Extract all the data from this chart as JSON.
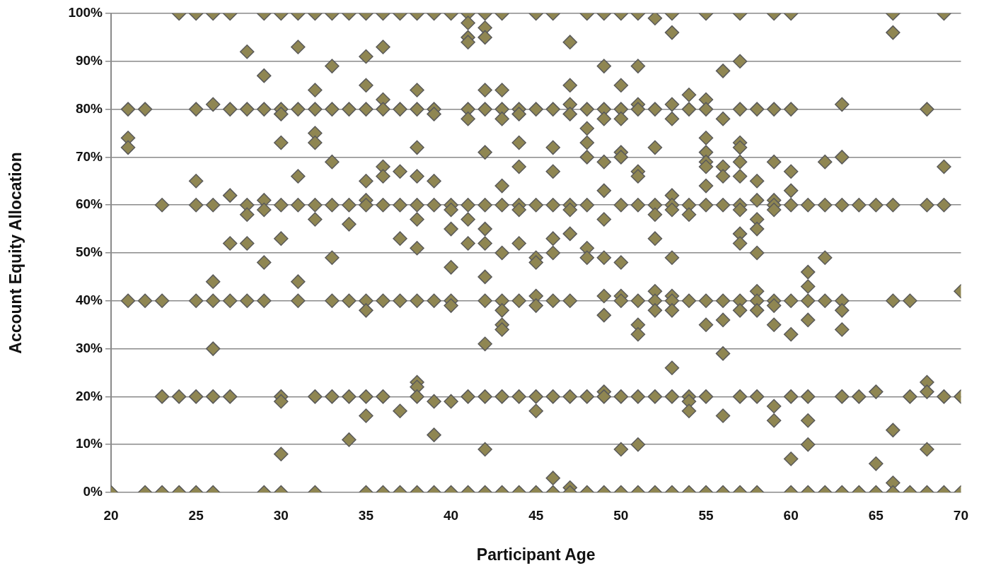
{
  "chart_data": {
    "type": "scatter",
    "xlabel": "Participant Age",
    "ylabel": "Account Equity Allocation",
    "color": "#8f8652",
    "marker": "diamond",
    "grid": "y",
    "xlim": [
      20,
      70
    ],
    "xticks": [
      20,
      25,
      30,
      35,
      40,
      45,
      50,
      55,
      60,
      65,
      70
    ],
    "ylim": [
      0,
      100
    ],
    "yticks": [
      {
        "value": 0,
        "label": "0%"
      },
      {
        "value": 10,
        "label": "10%"
      },
      {
        "value": 20,
        "label": "20%"
      },
      {
        "value": 30,
        "label": "30%"
      },
      {
        "value": 40,
        "label": "40%"
      },
      {
        "value": 50,
        "label": "50%"
      },
      {
        "value": 60,
        "label": "60%"
      },
      {
        "value": 70,
        "label": "70%"
      },
      {
        "value": 80,
        "label": "80%"
      },
      {
        "value": 90,
        "label": "90%"
      },
      {
        "value": 100,
        "label": "100%"
      }
    ],
    "x": [
      20,
      21,
      21,
      21,
      21,
      22,
      22,
      22,
      23,
      23,
      23,
      23,
      24,
      24,
      24,
      25,
      25,
      25,
      25,
      25,
      25,
      25,
      26,
      26,
      26,
      26,
      26,
      26,
      26,
      26,
      27,
      27,
      27,
      27,
      27,
      27,
      28,
      28,
      28,
      28,
      28,
      28,
      29,
      29,
      29,
      29,
      29,
      29,
      29,
      29,
      30,
      30,
      30,
      30,
      30,
      30,
      30,
      30,
      30,
      30,
      31,
      31,
      31,
      31,
      31,
      31,
      31,
      32,
      32,
      32,
      32,
      32,
      32,
      32,
      32,
      32,
      33,
      33,
      33,
      33,
      33,
      33,
      33,
      33,
      34,
      34,
      34,
      34,
      34,
      34,
      34,
      35,
      35,
      35,
      35,
      35,
      35,
      35,
      35,
      35,
      35,
      35,
      35,
      36,
      36,
      36,
      36,
      36,
      36,
      36,
      36,
      36,
      36,
      37,
      37,
      37,
      37,
      37,
      37,
      37,
      37,
      38,
      38,
      38,
      38,
      38,
      38,
      38,
      38,
      38,
      38,
      38,
      38,
      38,
      39,
      39,
      39,
      39,
      39,
      39,
      39,
      39,
      39,
      40,
      40,
      40,
      40,
      40,
      40,
      40,
      40,
      40,
      41,
      41,
      41,
      41,
      41,
      41,
      41,
      41,
      41,
      41,
      41,
      42,
      42,
      42,
      42,
      42,
      42,
      42,
      42,
      42,
      42,
      42,
      42,
      42,
      42,
      42,
      43,
      43,
      43,
      43,
      43,
      43,
      43,
      43,
      43,
      43,
      43,
      43,
      43,
      44,
      44,
      44,
      44,
      44,
      44,
      44,
      44,
      44,
      44,
      45,
      45,
      45,
      45,
      45,
      45,
      45,
      45,
      45,
      45,
      46,
      46,
      46,
      46,
      46,
      46,
      46,
      46,
      46,
      46,
      46,
      47,
      47,
      47,
      47,
      47,
      47,
      47,
      47,
      47,
      47,
      47,
      48,
      48,
      48,
      48,
      48,
      48,
      48,
      48,
      48,
      48,
      49,
      49,
      49,
      49,
      49,
      49,
      49,
      49,
      49,
      49,
      49,
      49,
      49,
      50,
      50,
      50,
      50,
      50,
      50,
      50,
      50,
      50,
      50,
      50,
      50,
      50,
      51,
      51,
      51,
      51,
      51,
      51,
      51,
      51,
      51,
      51,
      51,
      51,
      51,
      52,
      52,
      52,
      52,
      52,
      52,
      52,
      52,
      52,
      52,
      52,
      53,
      53,
      53,
      53,
      53,
      53,
      53,
      53,
      53,
      53,
      53,
      53,
      53,
      53,
      54,
      54,
      54,
      54,
      54,
      54,
      54,
      54,
      54,
      55,
      55,
      55,
      55,
      55,
      55,
      55,
      55,
      55,
      55,
      55,
      55,
      55,
      56,
      56,
      56,
      56,
      56,
      56,
      56,
      56,
      56,
      56,
      57,
      57,
      57,
      57,
      57,
      57,
      57,
      57,
      57,
      57,
      57,
      57,
      57,
      57,
      57,
      58,
      58,
      58,
      58,
      58,
      58,
      58,
      58,
      58,
      58,
      58,
      59,
      59,
      59,
      59,
      59,
      59,
      59,
      59,
      59,
      59,
      59,
      60,
      60,
      60,
      60,
      60,
      60,
      60,
      60,
      60,
      60,
      61,
      61,
      61,
      61,
      61,
      61,
      61,
      61,
      61,
      62,
      62,
      62,
      62,
      62,
      63,
      63,
      63,
      63,
      63,
      63,
      63,
      63,
      64,
      64,
      64,
      65,
      65,
      65,
      65,
      66,
      66,
      66,
      66,
      66,
      66,
      66,
      67,
      67,
      67,
      68,
      68,
      68,
      68,
      68,
      68,
      69,
      69,
      69,
      69,
      69,
      70,
      70,
      70
    ],
    "values": [
      0,
      80,
      74,
      72,
      40,
      80,
      40,
      0,
      60,
      40,
      20,
      0,
      100,
      20,
      0,
      100,
      80,
      65,
      60,
      40,
      20,
      0,
      100,
      81,
      60,
      44,
      40,
      30,
      20,
      0,
      100,
      80,
      62,
      52,
      40,
      20,
      92,
      80,
      60,
      58,
      52,
      40,
      100,
      87,
      80,
      61,
      59,
      48,
      40,
      0,
      100,
      80,
      79,
      73,
      60,
      53,
      20,
      19,
      8,
      0,
      100,
      93,
      80,
      66,
      60,
      44,
      40,
      100,
      84,
      80,
      75,
      73,
      60,
      57,
      20,
      0,
      100,
      89,
      80,
      69,
      60,
      49,
      40,
      20,
      100,
      80,
      60,
      56,
      40,
      20,
      11,
      100,
      91,
      85,
      80,
      65,
      61,
      60,
      40,
      38,
      20,
      16,
      0,
      100,
      93,
      82,
      80,
      68,
      66,
      60,
      40,
      20,
      0,
      100,
      80,
      67,
      60,
      53,
      40,
      17,
      0,
      100,
      84,
      80,
      72,
      66,
      60,
      57,
      51,
      40,
      23,
      22,
      20,
      0,
      100,
      80,
      79,
      65,
      60,
      40,
      19,
      12,
      0,
      100,
      60,
      59,
      55,
      47,
      40,
      39,
      19,
      0,
      100,
      98,
      95,
      94,
      80,
      78,
      60,
      57,
      52,
      20,
      0,
      100,
      97,
      95,
      84,
      80,
      71,
      60,
      55,
      52,
      45,
      40,
      31,
      20,
      9,
      0,
      100,
      84,
      80,
      78,
      64,
      60,
      50,
      40,
      38,
      35,
      34,
      20,
      0,
      80,
      79,
      73,
      68,
      60,
      59,
      52,
      40,
      20,
      0,
      100,
      80,
      60,
      49,
      48,
      41,
      39,
      20,
      17,
      0,
      100,
      80,
      72,
      67,
      60,
      53,
      50,
      40,
      20,
      3,
      0,
      94,
      85,
      81,
      79,
      60,
      59,
      54,
      40,
      20,
      1,
      0,
      100,
      80,
      76,
      73,
      70,
      60,
      51,
      49,
      20,
      0,
      100,
      89,
      80,
      78,
      69,
      63,
      57,
      49,
      41,
      37,
      21,
      20,
      0,
      100,
      85,
      80,
      78,
      71,
      70,
      60,
      48,
      41,
      40,
      20,
      9,
      0,
      100,
      89,
      81,
      80,
      67,
      66,
      60,
      40,
      35,
      33,
      20,
      10,
      0,
      99,
      80,
      72,
      60,
      58,
      53,
      42,
      40,
      38,
      20,
      0,
      100,
      96,
      81,
      78,
      62,
      60,
      59,
      49,
      41,
      40,
      38,
      26,
      20,
      0,
      83,
      80,
      60,
      58,
      40,
      20,
      19,
      17,
      0,
      100,
      82,
      80,
      74,
      71,
      69,
      68,
      64,
      60,
      40,
      35,
      20,
      0,
      88,
      78,
      68,
      66,
      60,
      40,
      36,
      29,
      16,
      0,
      100,
      90,
      80,
      73,
      72,
      69,
      66,
      60,
      59,
      54,
      52,
      40,
      38,
      20,
      0,
      80,
      65,
      61,
      57,
      55,
      50,
      42,
      40,
      38,
      20,
      0,
      100,
      80,
      69,
      61,
      60,
      59,
      40,
      39,
      35,
      18,
      15,
      100,
      80,
      67,
      63,
      60,
      40,
      33,
      20,
      7,
      0,
      60,
      46,
      43,
      40,
      36,
      20,
      15,
      10,
      0,
      69,
      60,
      49,
      40,
      0,
      81,
      70,
      60,
      40,
      38,
      34,
      20,
      0,
      60,
      20,
      0,
      60,
      21,
      6,
      0,
      100,
      96,
      60,
      40,
      13,
      2,
      0,
      40,
      20,
      0,
      80,
      60,
      23,
      21,
      9,
      0,
      100,
      68,
      60,
      20,
      0,
      42,
      20,
      0
    ]
  }
}
